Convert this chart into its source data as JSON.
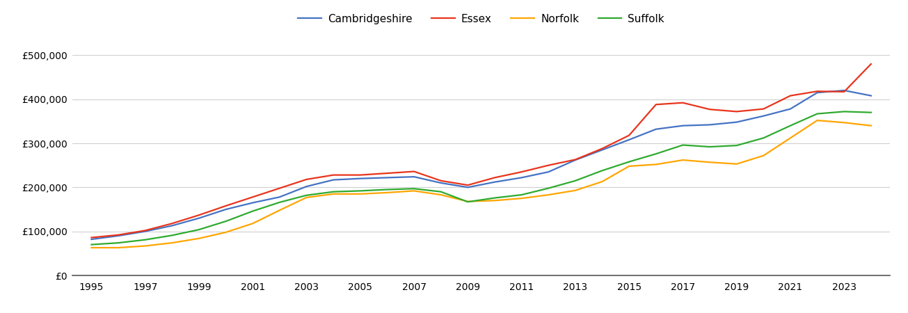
{
  "years": [
    1995,
    1996,
    1997,
    1998,
    1999,
    2000,
    2001,
    2002,
    2003,
    2004,
    2005,
    2006,
    2007,
    2008,
    2009,
    2010,
    2011,
    2012,
    2013,
    2014,
    2015,
    2016,
    2017,
    2018,
    2019,
    2020,
    2021,
    2022,
    2023,
    2024
  ],
  "series": {
    "Cambridgeshire": {
      "color": "#4472C4",
      "values": [
        82000,
        90000,
        100000,
        113000,
        130000,
        150000,
        165000,
        178000,
        202000,
        217000,
        220000,
        222000,
        224000,
        210000,
        200000,
        212000,
        222000,
        235000,
        262000,
        285000,
        308000,
        332000,
        340000,
        342000,
        348000,
        362000,
        378000,
        415000,
        420000,
        408000
      ]
    },
    "Essex": {
      "color": "#E8341C",
      "values": [
        86000,
        92000,
        102000,
        118000,
        137000,
        158000,
        178000,
        198000,
        218000,
        228000,
        228000,
        232000,
        236000,
        215000,
        205000,
        222000,
        235000,
        250000,
        263000,
        288000,
        318000,
        388000,
        392000,
        377000,
        372000,
        378000,
        408000,
        418000,
        417000,
        480000
      ]
    },
    "Norfolk": {
      "color": "#FFA500",
      "values": [
        63000,
        63000,
        67000,
        74000,
        84000,
        98000,
        118000,
        148000,
        177000,
        185000,
        185000,
        188000,
        192000,
        183000,
        168000,
        170000,
        175000,
        183000,
        193000,
        213000,
        248000,
        252000,
        262000,
        257000,
        253000,
        272000,
        312000,
        352000,
        347000,
        340000
      ]
    },
    "Suffolk": {
      "color": "#2EAA2E",
      "values": [
        70000,
        74000,
        81000,
        91000,
        104000,
        123000,
        146000,
        166000,
        182000,
        190000,
        192000,
        195000,
        197000,
        190000,
        167000,
        176000,
        183000,
        198000,
        215000,
        238000,
        258000,
        276000,
        296000,
        292000,
        295000,
        312000,
        340000,
        367000,
        372000,
        370000
      ]
    }
  },
  "ylim": [
    0,
    540000
  ],
  "yticks": [
    0,
    100000,
    200000,
    300000,
    400000,
    500000
  ],
  "xticks": [
    1995,
    1997,
    1999,
    2001,
    2003,
    2005,
    2007,
    2009,
    2011,
    2013,
    2015,
    2017,
    2019,
    2021,
    2023
  ],
  "background_color": "#ffffff",
  "grid_color": "#d0d0d0",
  "legend_order": [
    "Cambridgeshire",
    "Essex",
    "Norfolk",
    "Suffolk"
  ]
}
